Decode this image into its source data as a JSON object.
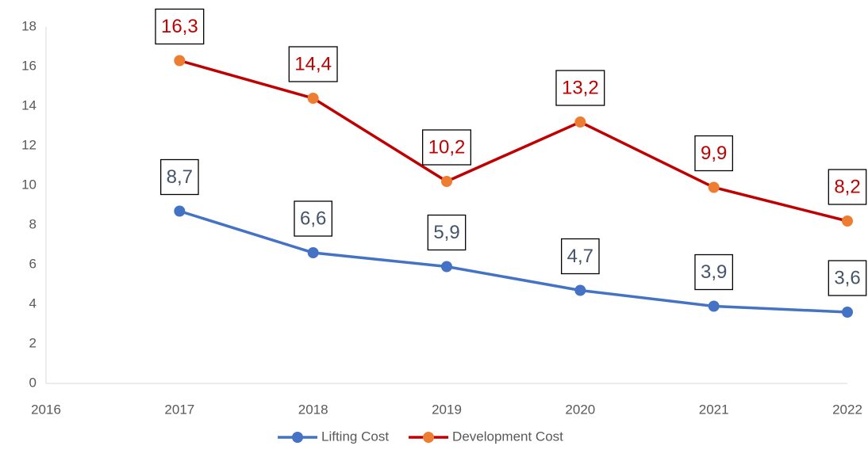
{
  "chart_data": {
    "type": "line",
    "x": [
      2017,
      2018,
      2019,
      2020,
      2021,
      2022
    ],
    "series": [
      {
        "name": "Lifting Cost",
        "color": "#4472c4",
        "marker_color": "#4472c4",
        "label_color": "#44546a",
        "values": [
          8.7,
          6.6,
          5.9,
          4.7,
          3.9,
          3.6
        ],
        "value_labels": [
          "8,7",
          "6,6",
          "5,9",
          "4,7",
          "3,9",
          "3,6"
        ]
      },
      {
        "name": "Development Cost",
        "color": "#c00000",
        "marker_color": "#ed7d31",
        "label_color": "#c00000",
        "values": [
          16.3,
          14.4,
          10.2,
          13.2,
          9.9,
          8.2
        ],
        "value_labels": [
          "16,3",
          "14,4",
          "10,2",
          "13,2",
          "9,9",
          "8,2"
        ]
      }
    ],
    "xlim": [
      2016,
      2022
    ],
    "xticks": [
      2016,
      2017,
      2018,
      2019,
      2020,
      2021,
      2022
    ],
    "ylim": [
      0,
      18
    ],
    "yticks": [
      0,
      2,
      4,
      6,
      8,
      10,
      12,
      14,
      16,
      18
    ],
    "grid": false,
    "legend": "bottom"
  }
}
